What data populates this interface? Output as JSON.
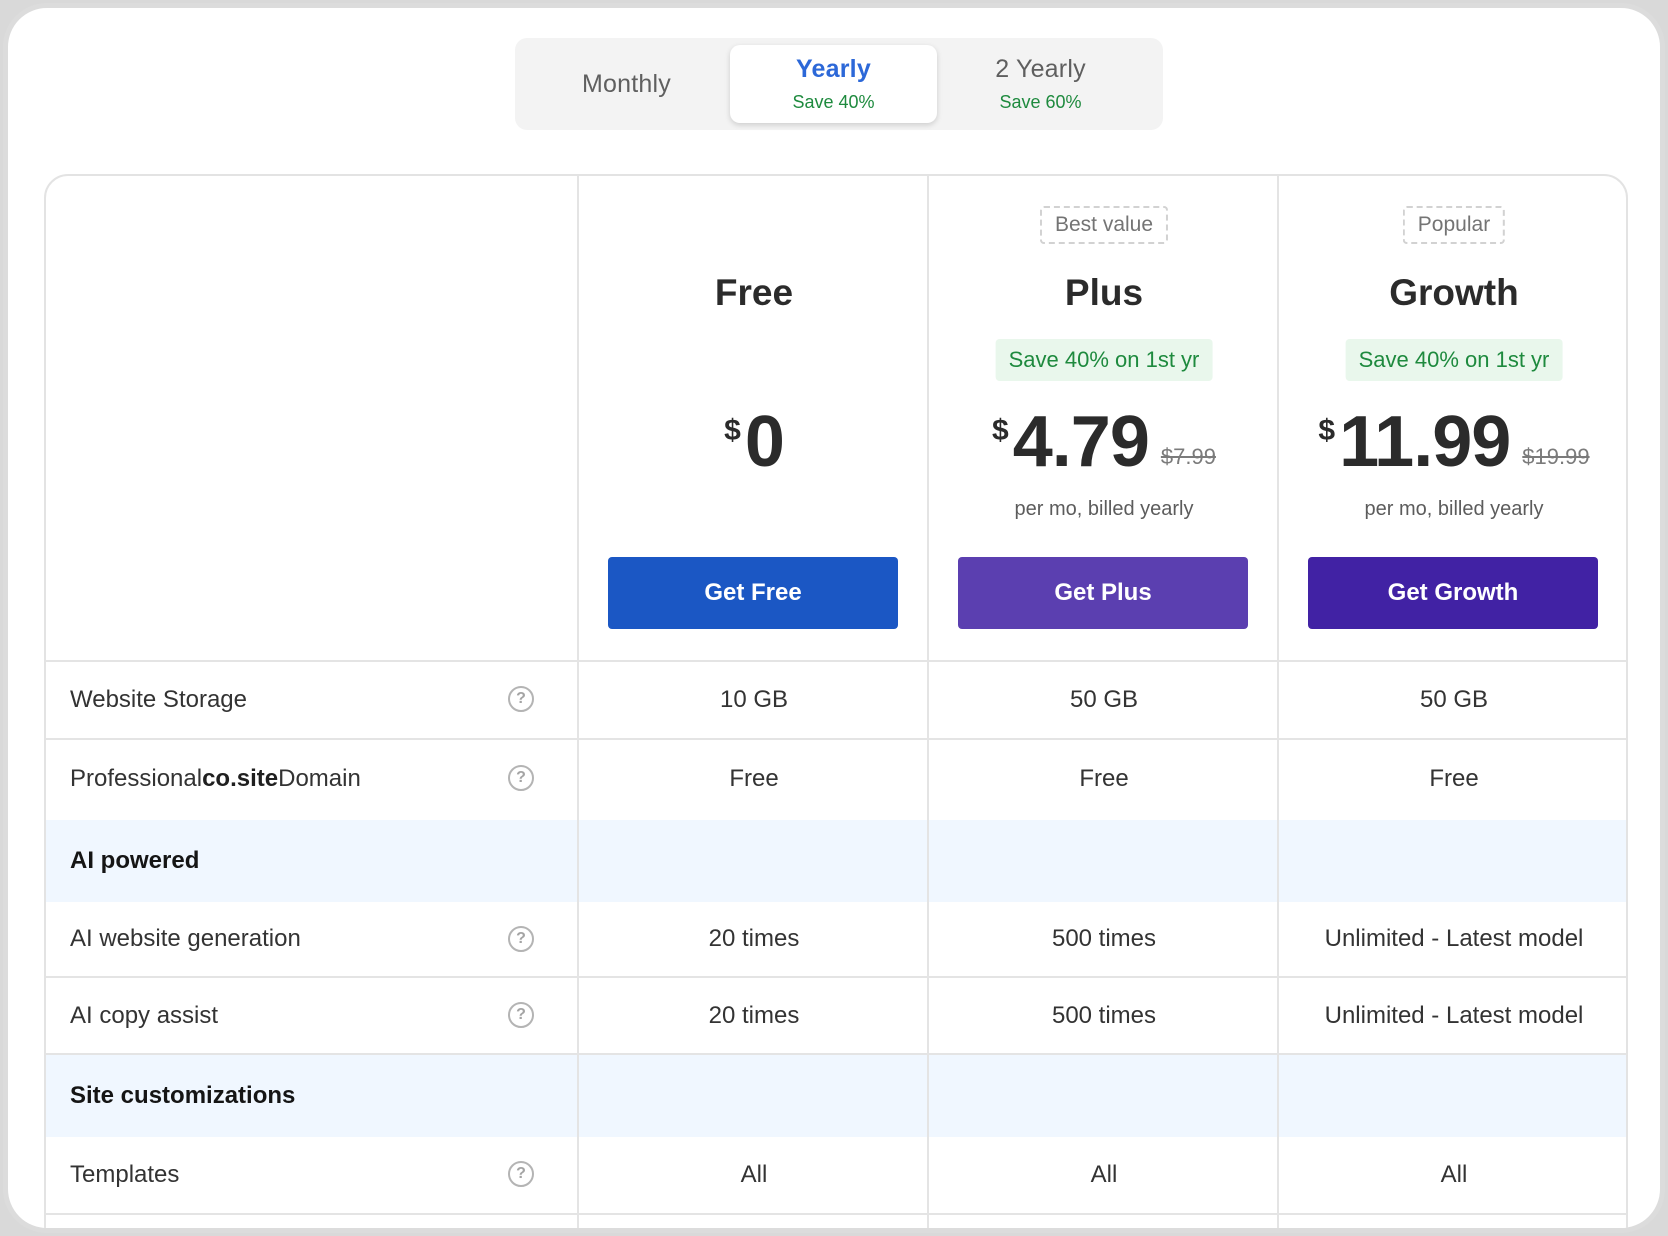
{
  "billing_toggle": {
    "options": [
      {
        "label": "Monthly",
        "save": ""
      },
      {
        "label": "Yearly",
        "save": "Save 40%"
      },
      {
        "label": "2 Yearly",
        "save": "Save 60%"
      }
    ],
    "selected": "Yearly"
  },
  "plans": [
    {
      "badge": "",
      "name": "Free",
      "save": "",
      "currency": "$",
      "price": "0",
      "old_price": "",
      "per": "",
      "cta": "Get Free",
      "cta_color": "#1b57c4"
    },
    {
      "badge": "Best value",
      "name": "Plus",
      "save": "Save 40% on 1st yr",
      "currency": "$",
      "price": "4.79",
      "old_price": "$7.99",
      "per": "per mo, billed yearly",
      "cta": "Get Plus",
      "cta_color": "#5b3fb0"
    },
    {
      "badge": "Popular",
      "name": "Growth",
      "save": "Save 40% on 1st yr",
      "currency": "$",
      "price": "11.99",
      "old_price": "$19.99",
      "per": "per mo, billed yearly",
      "cta": "Get Growth",
      "cta_color": "#4122a4"
    }
  ],
  "features": {
    "website_storage": {
      "label": "Website Storage",
      "values": [
        "10 GB",
        "50 GB",
        "50 GB"
      ]
    },
    "domain": {
      "label_pre": "Professional ",
      "label_bold": "co.site",
      "label_post": " Domain",
      "values": [
        "Free",
        "Free",
        "Free"
      ]
    },
    "section_ai": {
      "label": "AI powered"
    },
    "ai_generation": {
      "label": "AI website generation",
      "values": [
        "20 times",
        "500 times",
        "Unlimited - Latest model"
      ]
    },
    "ai_copy": {
      "label": "AI copy assist",
      "values": [
        "20 times",
        "500 times",
        "Unlimited - Latest model"
      ]
    },
    "section_site": {
      "label": "Site customizations"
    },
    "templates": {
      "label": "Templates",
      "values": [
        "All",
        "All",
        "All"
      ]
    }
  },
  "help_icon_glyph": "?"
}
